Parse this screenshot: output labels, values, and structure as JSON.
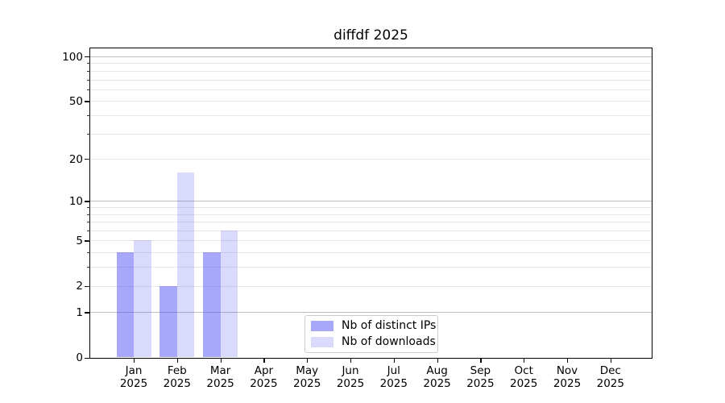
{
  "chart_data": {
    "type": "bar",
    "title": "diffdf 2025",
    "categories": [
      "Jan",
      "Feb",
      "Mar",
      "Apr",
      "May",
      "Jun",
      "Jul",
      "Aug",
      "Sep",
      "Oct",
      "Nov",
      "Dec"
    ],
    "year_label": "2025",
    "series": [
      {
        "name": "Nb of distinct IPs",
        "color": "rgba(70,70,245,0.47)",
        "values": [
          4,
          2,
          4,
          0,
          0,
          0,
          0,
          0,
          0,
          0,
          0,
          0
        ]
      },
      {
        "name": "Nb of downloads",
        "color": "rgba(70,70,245,0.20)",
        "values": [
          5,
          16,
          6,
          0,
          0,
          0,
          0,
          0,
          0,
          0,
          0,
          0
        ]
      }
    ],
    "yscale": "log1p",
    "ylim": [
      0,
      113.3
    ],
    "yticks_labeled": [
      0,
      1,
      2,
      5,
      10,
      20,
      50,
      100
    ],
    "yticks_major_grid": [
      1,
      10,
      100
    ],
    "yticks_minor_grid": [
      2,
      3,
      4,
      5,
      6,
      7,
      8,
      9,
      20,
      30,
      40,
      50,
      60,
      70,
      80,
      90
    ],
    "grid": true,
    "legend": {
      "position": "lower center",
      "entries": [
        "Nb of distinct IPs",
        "Nb of downloads"
      ]
    },
    "colors": {
      "grid_major": "#bfbfbf",
      "grid_minor": "#e7e7e7",
      "spine": "#000000",
      "text": "#000000"
    }
  }
}
